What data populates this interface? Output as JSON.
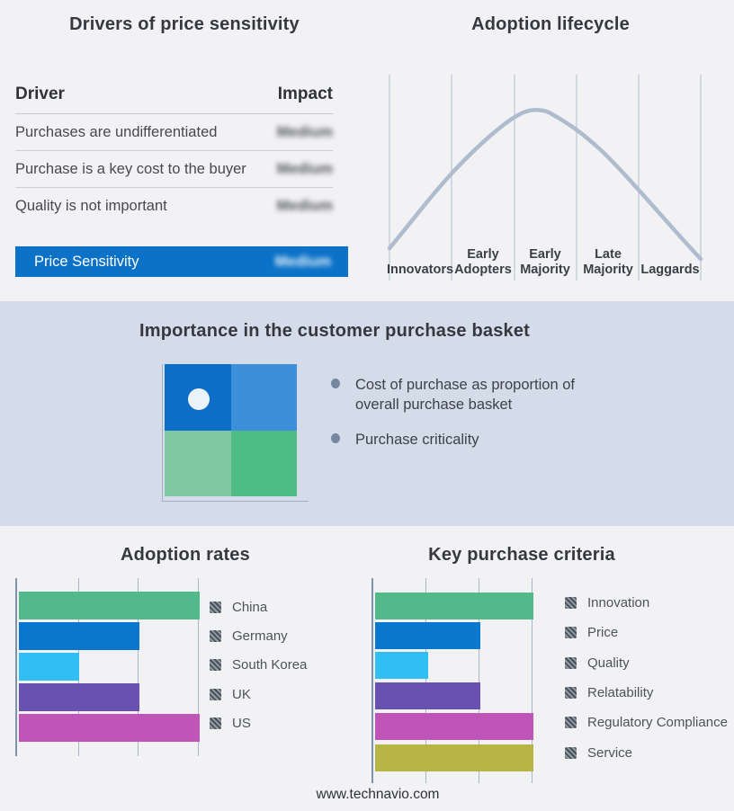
{
  "page": {
    "background": "#f2f2f4",
    "band_background": "#d3dce8",
    "footer": "www.technavio.com"
  },
  "titles": {
    "drivers": "Drivers of price sensitivity",
    "lifecycle": "Adoption lifecycle",
    "basket": "Importance in the customer purchase basket",
    "adoption_rates": "Adoption rates",
    "key_purchase_criteria": "Key purchase criteria"
  },
  "lifecycle": {
    "stages": [
      {
        "line1": "Innovators",
        "line2": ""
      },
      {
        "line1": "Early",
        "line2": "Adopters"
      },
      {
        "line1": "Early",
        "line2": "Majority"
      },
      {
        "line1": "Late",
        "line2": "Majority"
      },
      {
        "line1": "Laggards",
        "line2": ""
      }
    ]
  },
  "basket": {
    "title": "Importance in the customer purchase basket",
    "quadrant": {
      "top_left": "#0c6ec6",
      "top_right": "#3d8fd9",
      "bottom_left": "#7fc7a1",
      "bottom_right": "#4fbb87",
      "marker_dot": "#eaf3fb"
    },
    "bullets": [
      "Cost of purchase as proportion of overall purchase basket",
      "Purchase criticality"
    ]
  },
  "chart_data": [
    {
      "type": "table",
      "title": "Drivers of price sensitivity",
      "columns": [
        "Driver",
        "Impact"
      ],
      "rows": [
        [
          "Purchases are undifferentiated",
          "Medium"
        ],
        [
          "Purchase is a key cost to the buyer",
          "Medium"
        ],
        [
          "Quality is not important",
          "Medium"
        ],
        [
          "Price Sensitivity",
          "Medium"
        ]
      ],
      "note": "impact values shown blurred; last row highlighted",
      "highlight_color": "#0b72c8"
    },
    {
      "type": "line",
      "title": "Adoption lifecycle",
      "categories": [
        "Innovators",
        "Early Adopters",
        "Early Majority",
        "Late Majority",
        "Laggards"
      ],
      "description": "bell curve rising from Innovators, peaking at Early Majority, falling to Laggards",
      "color": "#aebccd",
      "grid": "vertical stage separators, no numeric axes"
    },
    {
      "type": "bar",
      "orientation": "horizontal",
      "title": "Adoption rates",
      "categories": [
        "China",
        "Germany",
        "South Korea",
        "UK",
        "US"
      ],
      "values": [
        3,
        2,
        1,
        2,
        3
      ],
      "xlim": [
        0,
        3
      ],
      "xlabel": "",
      "ylabel": "",
      "grid": "vertical gridlines at 1, 2, 3 (unlabeled)",
      "legend_position": "right",
      "colors": [
        "#52ba8a",
        "#0877cd",
        "#30bff2",
        "#6951b1",
        "#bf55b7"
      ]
    },
    {
      "type": "bar",
      "orientation": "horizontal",
      "title": "Key purchase criteria",
      "categories": [
        "Innovation",
        "Price",
        "Quality",
        "Relatability",
        "Regulatory Compliance",
        "Service"
      ],
      "values": [
        3,
        2,
        1,
        2,
        3,
        3
      ],
      "xlim": [
        0,
        3
      ],
      "xlabel": "",
      "ylabel": "",
      "grid": "vertical gridlines at 1, 2, 3 (unlabeled)",
      "legend_position": "right",
      "colors": [
        "#52ba8a",
        "#0877cd",
        "#30bff2",
        "#6951b1",
        "#bf55b7",
        "#b6b545"
      ]
    }
  ]
}
